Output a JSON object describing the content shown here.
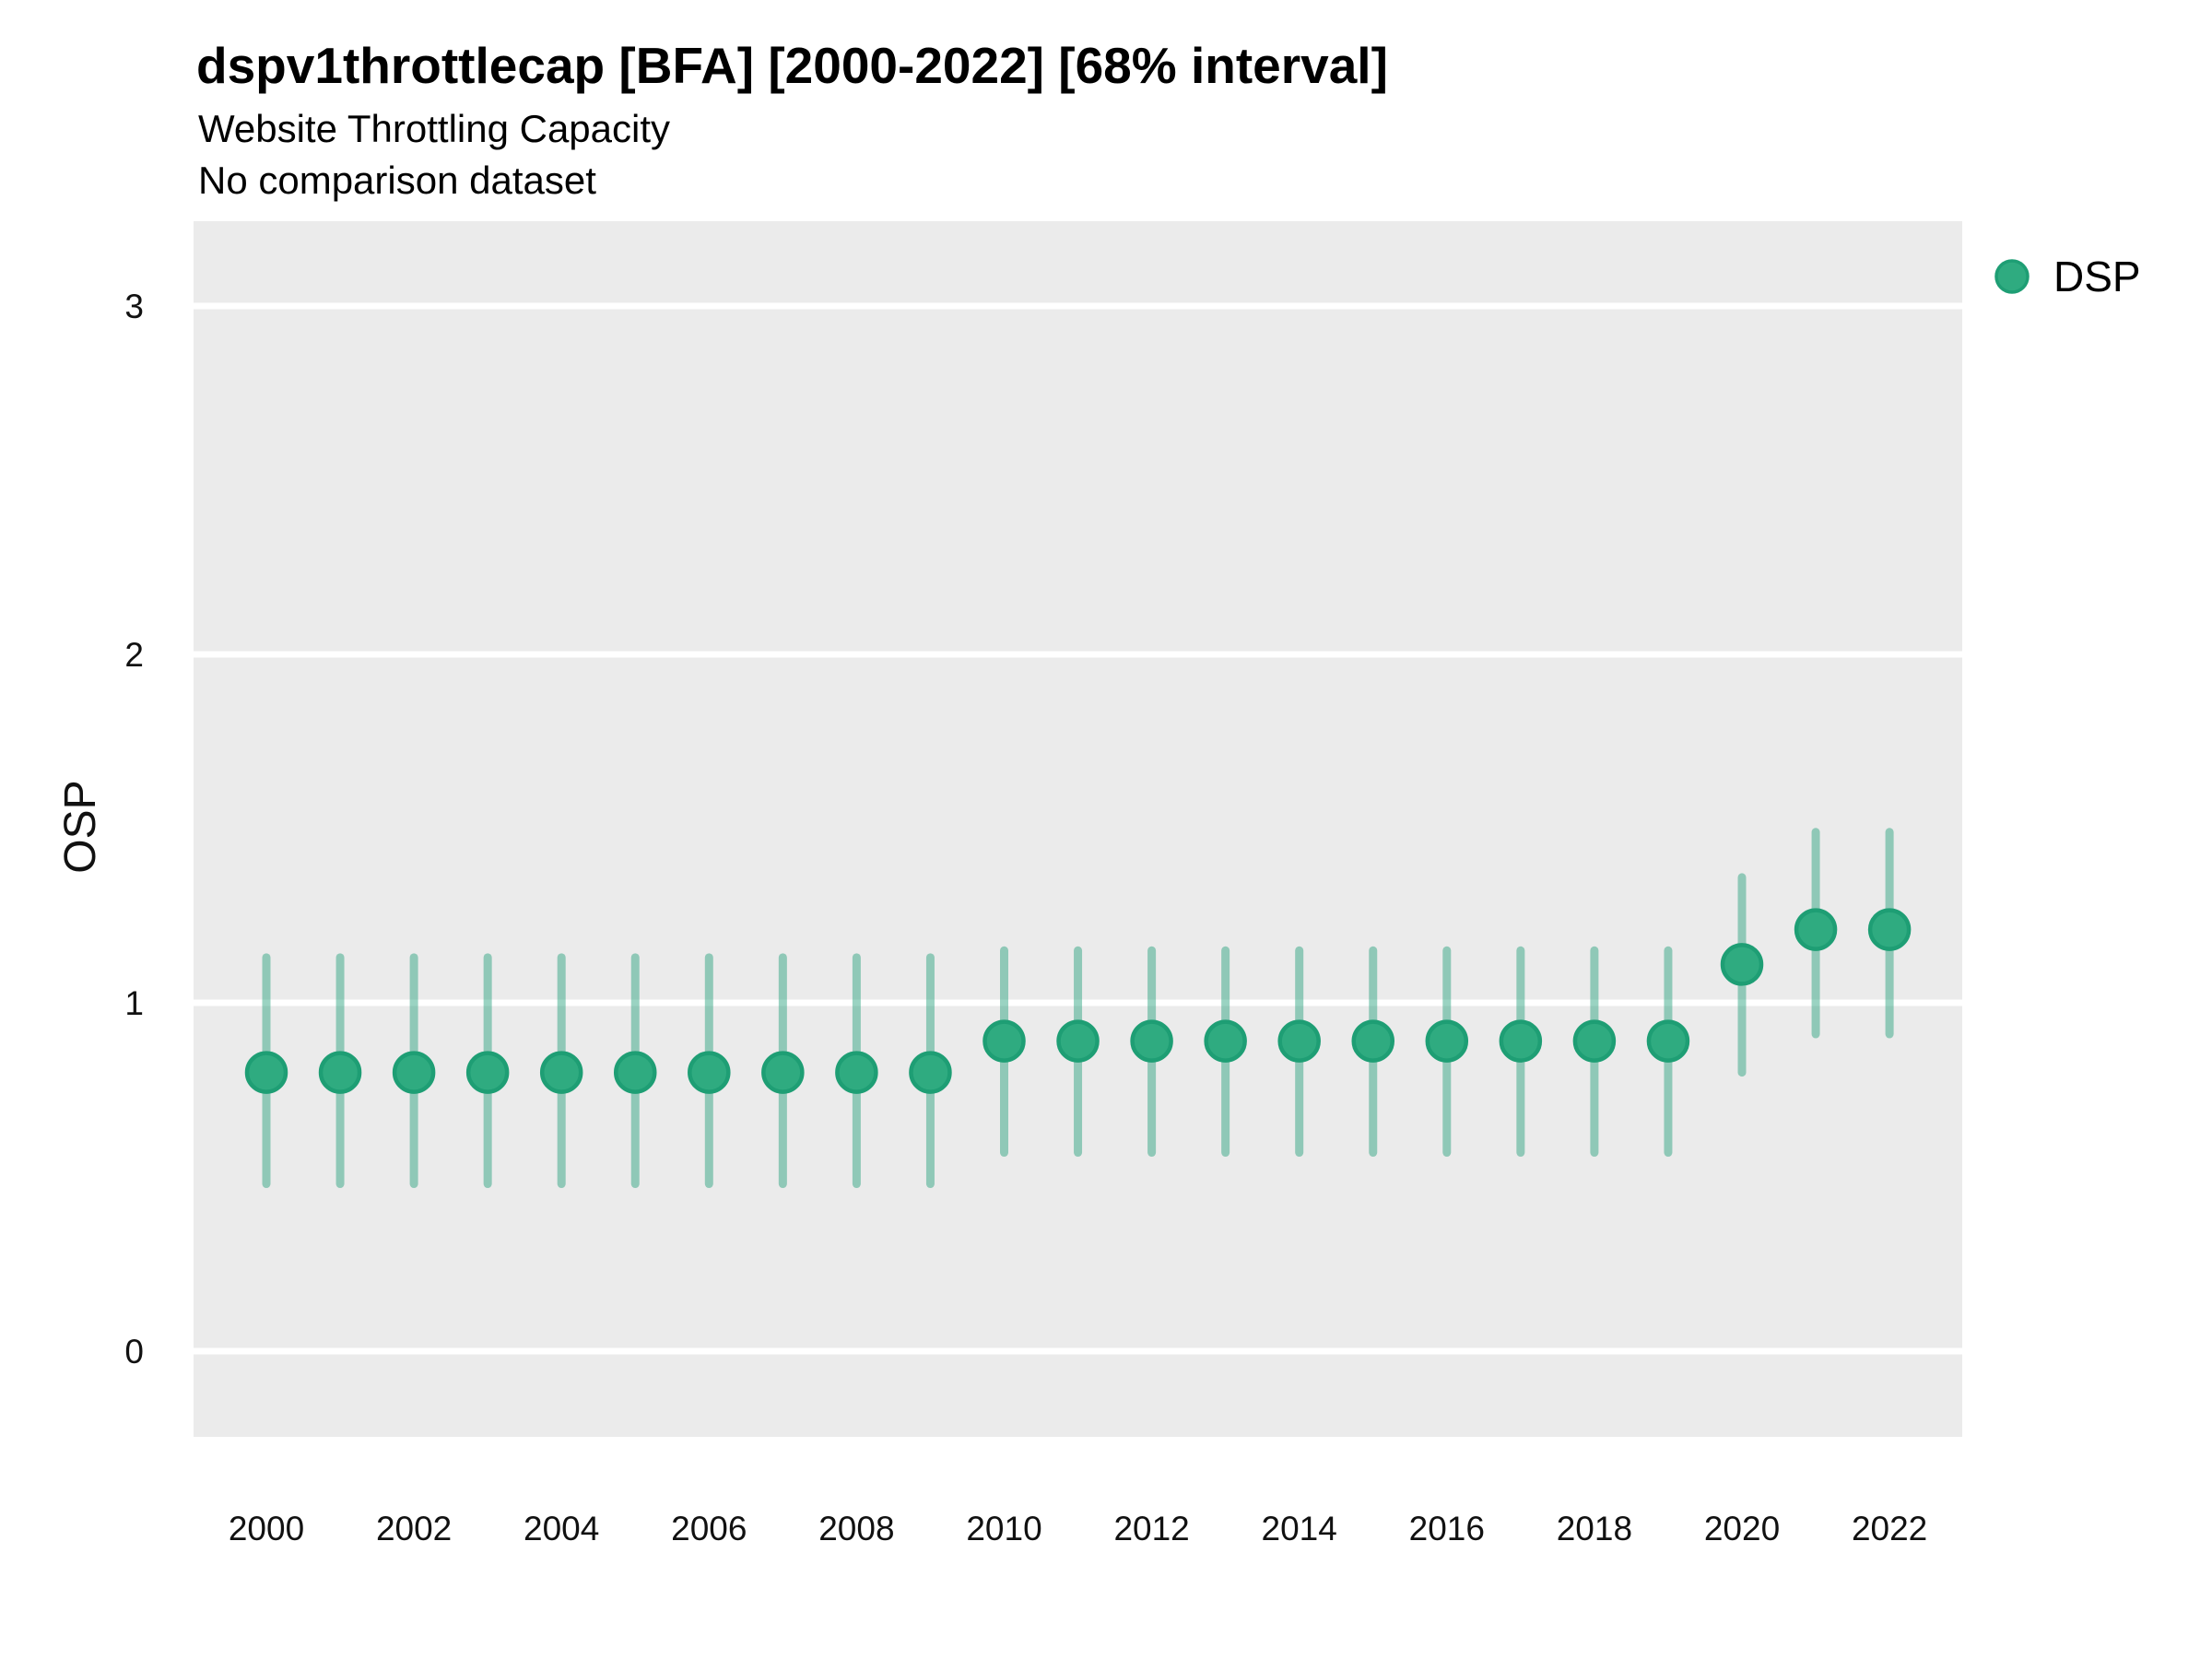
{
  "header": {
    "title": "dspv1throttlecap [BFA] [2000-2022] [68% interval]",
    "subtitle": "Website Throttling Capacity",
    "caption": "No comparison dataset"
  },
  "legend": {
    "position": "top-right",
    "items": [
      {
        "label": "DSP",
        "marker": "circle-icon",
        "color": "#2FAB80"
      }
    ]
  },
  "chart_data": {
    "type": "pointrange",
    "title": "dspv1throttlecap [BFA] [2000-2022] [68% interval]",
    "subtitle": "Website Throttling Capacity",
    "caption": "No comparison dataset",
    "xlabel": "",
    "ylabel": "OSP",
    "interval_level": "68%",
    "x_domain": [
      1999,
      2023
    ],
    "y_domain": [
      -0.25,
      3.25
    ],
    "x_ticks": [
      2000,
      2002,
      2004,
      2006,
      2008,
      2010,
      2012,
      2014,
      2016,
      2018,
      2020,
      2022
    ],
    "y_ticks": [
      0,
      1,
      2,
      3
    ],
    "grid": "major-horizontal-only",
    "series": [
      {
        "name": "DSP",
        "points": [
          {
            "year": 2000,
            "mid": 0.8,
            "low": 0.48,
            "high": 1.13
          },
          {
            "year": 2001,
            "mid": 0.8,
            "low": 0.48,
            "high": 1.13
          },
          {
            "year": 2002,
            "mid": 0.8,
            "low": 0.48,
            "high": 1.13
          },
          {
            "year": 2003,
            "mid": 0.8,
            "low": 0.48,
            "high": 1.13
          },
          {
            "year": 2004,
            "mid": 0.8,
            "low": 0.48,
            "high": 1.13
          },
          {
            "year": 2005,
            "mid": 0.8,
            "low": 0.48,
            "high": 1.13
          },
          {
            "year": 2006,
            "mid": 0.8,
            "low": 0.48,
            "high": 1.13
          },
          {
            "year": 2007,
            "mid": 0.8,
            "low": 0.48,
            "high": 1.13
          },
          {
            "year": 2008,
            "mid": 0.8,
            "low": 0.48,
            "high": 1.13
          },
          {
            "year": 2009,
            "mid": 0.8,
            "low": 0.48,
            "high": 1.13
          },
          {
            "year": 2010,
            "mid": 0.89,
            "low": 0.57,
            "high": 1.15
          },
          {
            "year": 2011,
            "mid": 0.89,
            "low": 0.57,
            "high": 1.15
          },
          {
            "year": 2012,
            "mid": 0.89,
            "low": 0.57,
            "high": 1.15
          },
          {
            "year": 2013,
            "mid": 0.89,
            "low": 0.57,
            "high": 1.15
          },
          {
            "year": 2014,
            "mid": 0.89,
            "low": 0.57,
            "high": 1.15
          },
          {
            "year": 2015,
            "mid": 0.89,
            "low": 0.57,
            "high": 1.15
          },
          {
            "year": 2016,
            "mid": 0.89,
            "low": 0.57,
            "high": 1.15
          },
          {
            "year": 2017,
            "mid": 0.89,
            "low": 0.57,
            "high": 1.15
          },
          {
            "year": 2018,
            "mid": 0.89,
            "low": 0.57,
            "high": 1.15
          },
          {
            "year": 2019,
            "mid": 0.89,
            "low": 0.57,
            "high": 1.15
          },
          {
            "year": 2020,
            "mid": 1.11,
            "low": 0.8,
            "high": 1.36
          },
          {
            "year": 2021,
            "mid": 1.21,
            "low": 0.91,
            "high": 1.49
          },
          {
            "year": 2022,
            "mid": 1.21,
            "low": 0.91,
            "high": 1.49
          }
        ]
      }
    ],
    "colors": {
      "point_fill": "#2FAB80",
      "point_stroke": "#1E9E74",
      "interval_bar": "rgba(31,158,119,0.45)",
      "panel_background": "#EBEBEB",
      "gridline": "#FFFFFF",
      "axis_text": "#111111"
    }
  }
}
